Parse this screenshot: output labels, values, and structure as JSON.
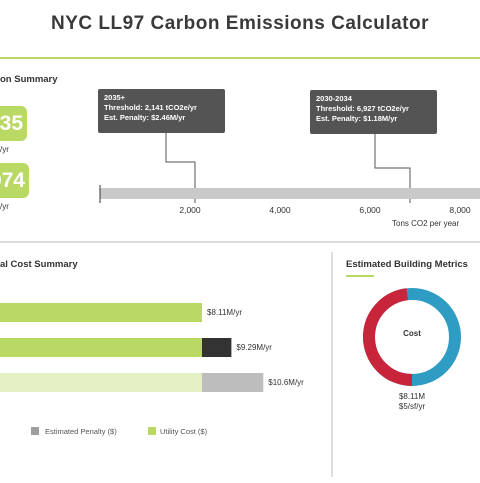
{
  "header": {
    "title": "NYC LL97 Carbon Emissions Calculator"
  },
  "emissions_summary": {
    "heading": "on Summary",
    "metric_1": {
      "value": "35",
      "unit": "/yr"
    },
    "metric_2": {
      "value": "074",
      "unit": "/yr"
    }
  },
  "threshold_chart": {
    "callout_1": {
      "period": "2035+",
      "threshold": "Threshold: 2,141 tCO2e/yr",
      "penalty": "Est. Penalty: $2.46M/yr"
    },
    "callout_2": {
      "period": "2030-2034",
      "threshold": "Threshold: 6,927 tCO2e/yr",
      "penalty": "Est. Penalty: $1.18M/yr"
    },
    "tick_labels": [
      "2,000",
      "4,000",
      "6,000",
      "8,000"
    ],
    "axis_label": "Tons CO2 per year"
  },
  "cost_summary": {
    "heading": "al Cost Summary",
    "bars": [
      {
        "label": "$8.11M/yr",
        "utility": 8.11,
        "penalty": 0,
        "faded": false
      },
      {
        "label": "$9.29M/yr",
        "utility": 8.11,
        "penalty": 1.18,
        "faded": false
      },
      {
        "label": "$10.6M/yr",
        "utility": 8.11,
        "penalty": 2.46,
        "faded": true
      }
    ],
    "legend": {
      "penalty_label": "Estimated Penalty ($)",
      "utility_label": "Utility Cost ($)"
    },
    "colors": {
      "utility": "#b9d864",
      "utility_faded": "#e4efc4",
      "penalty": "#333333",
      "penalty_faded": "#bdbdbd"
    }
  },
  "building_metrics": {
    "heading": "Estimated Building Metrics",
    "donut_center": "Cost",
    "total": "$8.11M",
    "per_sf": "$5/sf/yr",
    "colors": {
      "blue": "#2e9cc3",
      "red": "#c8243a"
    }
  }
}
